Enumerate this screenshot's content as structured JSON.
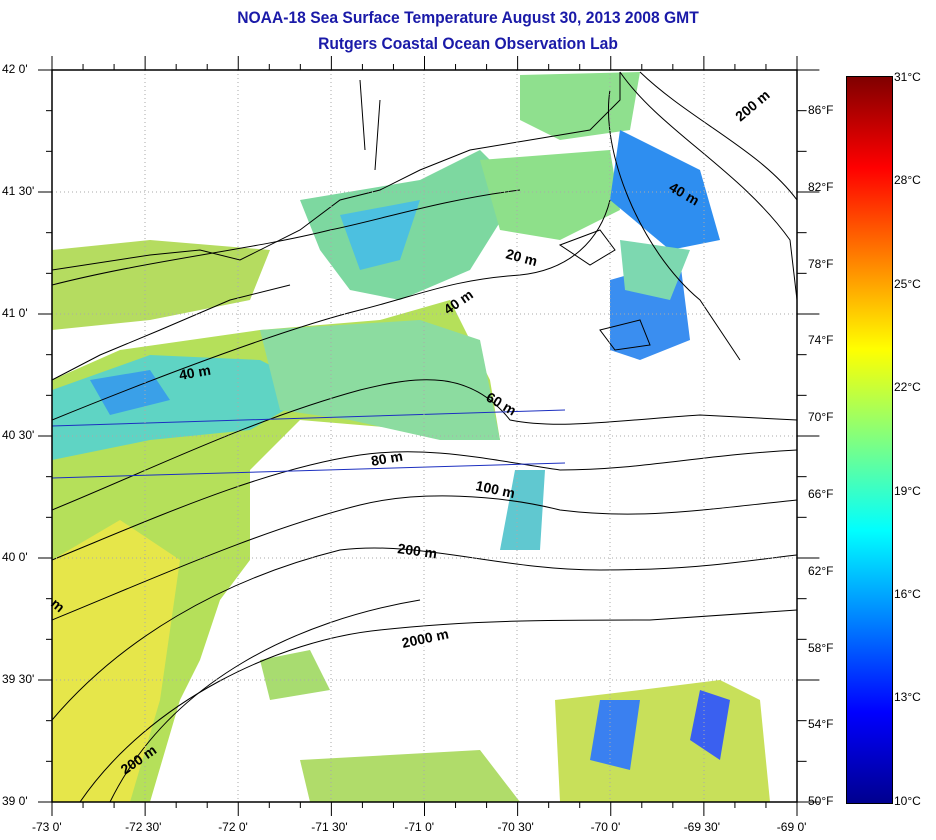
{
  "title": "NOAA-18 Sea Surface Temperature August 30, 2013 2008 GMT",
  "subtitle": "Rutgers Coastal Ocean Observation Lab",
  "lat_labels": [
    "42 0'",
    "41 30'",
    "41 0'",
    "40 30'",
    "40 0'",
    "39 30'",
    "39 0'"
  ],
  "lon_labels": [
    "-73 0'",
    "-72 30'",
    "-72 0'",
    "-71 30'",
    "-71 0'",
    "-70 30'",
    "-70 0'",
    "-69 30'",
    "-69 0'"
  ],
  "fahrenheit_labels": [
    "86°F",
    "82°F",
    "78°F",
    "74°F",
    "70°F",
    "66°F",
    "62°F",
    "58°F",
    "54°F",
    "50°F"
  ],
  "celsius_labels": [
    "31°C",
    "28°C",
    "25°C",
    "22°C",
    "19°C",
    "16°C",
    "13°C",
    "10°C"
  ],
  "contour_labels": [
    "200 m",
    "40 m",
    "20 m",
    "40 m",
    "40 m",
    "60 m",
    "80 m",
    "100 m",
    "200 m",
    "2000 m",
    "200 m",
    "m"
  ],
  "colorbar": {
    "min_c": 10,
    "max_c": 31,
    "stops": [
      "#00008f",
      "#0000ff",
      "#0080ff",
      "#00ffff",
      "#80ff80",
      "#ffff00",
      "#ff8000",
      "#ff0000",
      "#800000"
    ]
  },
  "colors": {
    "title": "#1a1aa8",
    "land": "#ffffff",
    "coast": "#000000",
    "transect": "#1c2fc0"
  }
}
